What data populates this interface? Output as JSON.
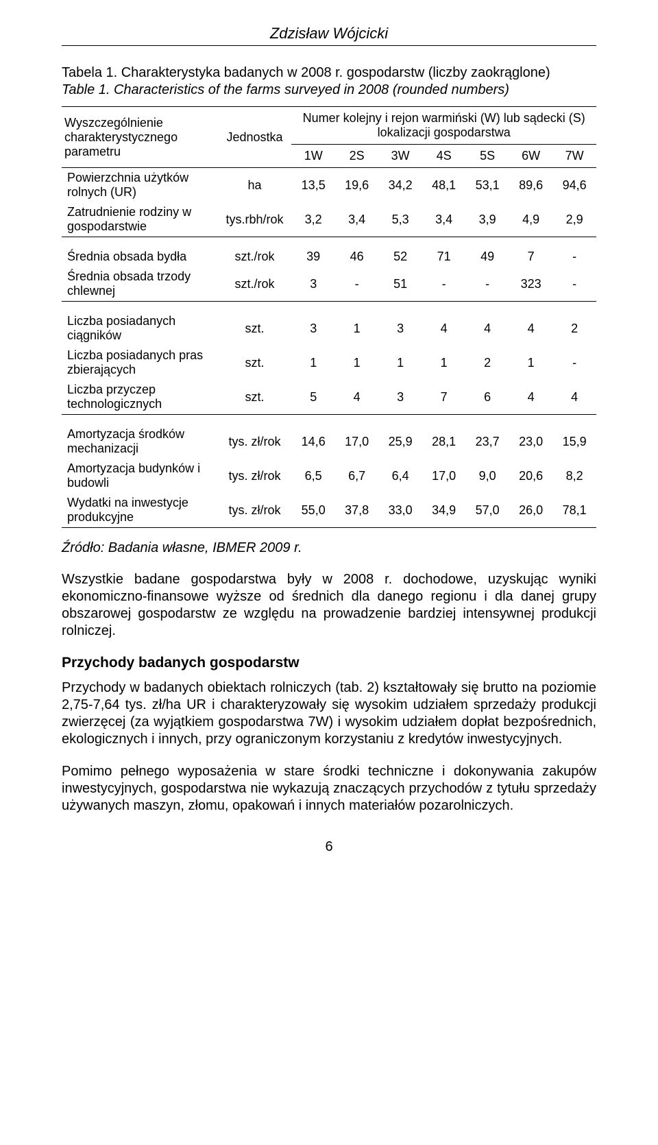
{
  "author": "Zdzisław Wójcicki",
  "table": {
    "title": "Tabela 1. Charakterystyka badanych w 2008 r. gospodarstw (liczby zaokrąglone)",
    "subtitle": "Table 1. Characteristics of the farms surveyed in 2008 (rounded numbers)",
    "corner_label": "Wyszczególnienie charakterystycznego parametru",
    "unit_header": "Jednostka",
    "group_header": "Numer kolejny i rejon warmiński (W) lub sądecki (S) lokalizacji gospodarstwa",
    "col_heads": [
      "1W",
      "2S",
      "3W",
      "4S",
      "5S",
      "6W",
      "7W"
    ],
    "sections": [
      {
        "rows": [
          {
            "label": "Powierzchnia użytków rolnych (UR)",
            "unit": "ha",
            "vals": [
              "13,5",
              "19,6",
              "34,2",
              "48,1",
              "53,1",
              "89,6",
              "94,6"
            ]
          },
          {
            "label": "Zatrudnienie rodziny w gospodarstwie",
            "unit": "tys.rbh/rok",
            "vals": [
              "3,2",
              "3,4",
              "5,3",
              "3,4",
              "3,9",
              "4,9",
              "2,9"
            ]
          }
        ]
      },
      {
        "rows": [
          {
            "label": "Średnia obsada bydła",
            "unit": "szt./rok",
            "vals": [
              "39",
              "46",
              "52",
              "71",
              "49",
              "7",
              "-"
            ]
          },
          {
            "label": "Średnia obsada trzody chlewnej",
            "unit": "szt./rok",
            "vals": [
              "3",
              "-",
              "51",
              "-",
              "-",
              "323",
              "-"
            ]
          }
        ]
      },
      {
        "rows": [
          {
            "label": "Liczba posiadanych ciągników",
            "unit": "szt.",
            "vals": [
              "3",
              "1",
              "3",
              "4",
              "4",
              "4",
              "2"
            ]
          },
          {
            "label": "Liczba posiadanych pras zbierających",
            "unit": "szt.",
            "vals": [
              "1",
              "1",
              "1",
              "1",
              "2",
              "1",
              "-"
            ]
          },
          {
            "label": "Liczba przyczep technologicznych",
            "unit": "szt.",
            "vals": [
              "5",
              "4",
              "3",
              "7",
              "6",
              "4",
              "4"
            ]
          }
        ]
      },
      {
        "rows": [
          {
            "label": "Amortyzacja środków mechanizacji",
            "unit": "tys. zł/rok",
            "vals": [
              "14,6",
              "17,0",
              "25,9",
              "28,1",
              "23,7",
              "23,0",
              "15,9"
            ]
          },
          {
            "label": "Amortyzacja budynków i budowli",
            "unit": "tys. zł/rok",
            "vals": [
              "6,5",
              "6,7",
              "6,4",
              "17,0",
              "9,0",
              "20,6",
              "8,2"
            ]
          },
          {
            "label": "Wydatki na inwestycje produkcyjne",
            "unit": "tys. zł/rok",
            "vals": [
              "55,0",
              "37,8",
              "33,0",
              "34,9",
              "57,0",
              "26,0",
              "78,1"
            ]
          }
        ]
      }
    ],
    "source": "Źródło: Badania własne, IBMER 2009 r."
  },
  "paragraphs": {
    "p1": "Wszystkie badane gospodarstwa były w 2008 r. dochodowe, uzyskując wyniki ekonomiczno-finansowe wyższe od średnich dla danego regionu i dla danej grupy obszarowej gospodarstw ze względu na prowadzenie bardziej intensywnej produkcji rolniczej.",
    "h2": "Przychody badanych gospodarstw",
    "p2": "Przychody w badanych obiektach rolniczych (tab. 2) kształtowały się brutto na poziomie 2,75-7,64 tys. zł/ha UR i charakteryzowały się wysokim udziałem sprzedaży produkcji zwierzęcej (za wyjątkiem gospodarstwa 7W) i wysokim udziałem dopłat bezpośrednich, ekologicznych i innych, przy ograniczonym korzystaniu z kredytów inwestycyjnych.",
    "p3": "Pomimo pełnego wyposażenia w stare środki techniczne i dokonywania zakupów inwestycyjnych, gospodarstwa nie wykazują znaczących przychodów z tytułu sprzedaży używanych maszyn, złomu, opakowań i innych materiałów pozarolniczych."
  },
  "pagenum": "6",
  "style": {
    "font_family": "Arial",
    "body_font_size_pt": 15,
    "author_font_size_pt": 16,
    "text_color": "#000000",
    "background_color": "#ffffff",
    "border_color": "#000000"
  }
}
